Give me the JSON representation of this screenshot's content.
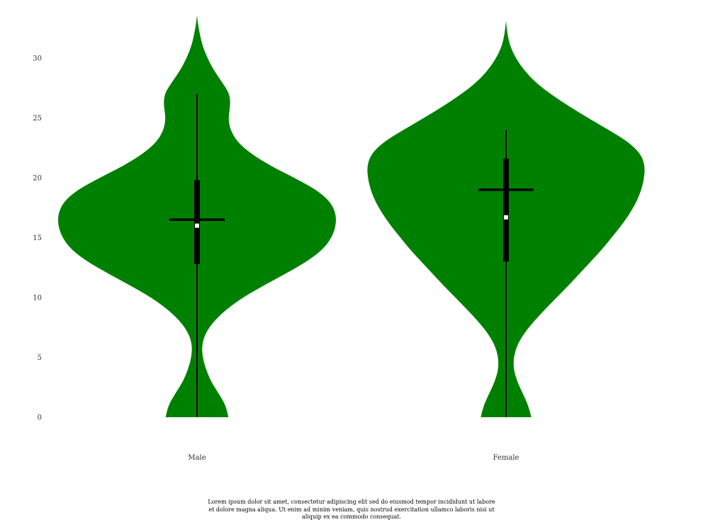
{
  "chart_data": {
    "type": "violin",
    "categories": [
      "Male",
      "Female"
    ],
    "ylim": [
      0,
      35
    ],
    "yticks": [
      0,
      5,
      10,
      15,
      20,
      25,
      30
    ],
    "xlabel": "",
    "ylabel": "",
    "title": "",
    "grid": false,
    "colors": {
      "violin": "#008000",
      "box": "#000000",
      "median": "#ffffff"
    },
    "series": [
      {
        "category": "Male",
        "whisker_low": 0,
        "whisker_high": 27,
        "q1": 12.8,
        "q3": 19.8,
        "median": 16.0,
        "mean": 16.5,
        "density": [
          [
            0,
            0.226
          ],
          [
            1,
            0.206
          ],
          [
            2,
            0.155
          ],
          [
            3,
            0.1
          ],
          [
            4,
            0.065
          ],
          [
            5,
            0.04
          ],
          [
            6,
            0.035
          ],
          [
            7,
            0.06
          ],
          [
            8,
            0.12
          ],
          [
            9,
            0.21
          ],
          [
            10,
            0.33
          ],
          [
            11,
            0.48
          ],
          [
            12,
            0.64
          ],
          [
            13,
            0.79
          ],
          [
            14,
            0.905
          ],
          [
            15,
            0.97
          ],
          [
            16,
            1.0
          ],
          [
            17,
            1.0
          ],
          [
            18,
            0.96
          ],
          [
            19,
            0.86
          ],
          [
            20,
            0.7
          ],
          [
            21,
            0.53
          ],
          [
            22,
            0.39
          ],
          [
            23,
            0.29
          ],
          [
            24,
            0.24
          ],
          [
            25,
            0.225
          ],
          [
            26,
            0.24
          ],
          [
            27,
            0.235
          ],
          [
            28,
            0.18
          ],
          [
            29,
            0.12
          ],
          [
            30,
            0.075
          ],
          [
            31,
            0.04
          ],
          [
            32,
            0.02
          ],
          [
            33,
            0.005
          ],
          [
            33.6,
            0.0
          ]
        ]
      },
      {
        "category": "Female",
        "whisker_low": 0,
        "whisker_high": 24,
        "q1": 13.0,
        "q3": 21.6,
        "median": 16.7,
        "mean": 19.0,
        "density": [
          [
            0,
            0.182
          ],
          [
            1,
            0.16
          ],
          [
            2,
            0.12
          ],
          [
            3,
            0.08
          ],
          [
            4,
            0.055
          ],
          [
            5,
            0.055
          ],
          [
            6,
            0.08
          ],
          [
            7,
            0.13
          ],
          [
            8,
            0.2
          ],
          [
            9,
            0.28
          ],
          [
            10,
            0.365
          ],
          [
            11,
            0.45
          ],
          [
            12,
            0.53
          ],
          [
            13,
            0.61
          ],
          [
            14,
            0.69
          ],
          [
            15,
            0.76
          ],
          [
            16,
            0.83
          ],
          [
            17,
            0.89
          ],
          [
            18,
            0.94
          ],
          [
            19,
            0.975
          ],
          [
            20,
            0.995
          ],
          [
            21,
            1.0
          ],
          [
            22,
            0.97
          ],
          [
            23,
            0.88
          ],
          [
            24,
            0.74
          ],
          [
            25,
            0.59
          ],
          [
            26,
            0.45
          ],
          [
            27,
            0.32
          ],
          [
            28,
            0.21
          ],
          [
            29,
            0.13
          ],
          [
            30,
            0.07
          ],
          [
            31,
            0.03
          ],
          [
            32,
            0.01
          ],
          [
            33.1,
            0.0
          ]
        ]
      }
    ]
  },
  "caption": "Lorem ipsum dolor sit amet, consectetur adipiscing elit sed do eiusmod tempor incididunt ut labore et dolore magna aliqua. Ut enim ad minim veniam, quis nostrud exercitation ullamco laboris nisi ut aliquip ex ea commodo consequat."
}
